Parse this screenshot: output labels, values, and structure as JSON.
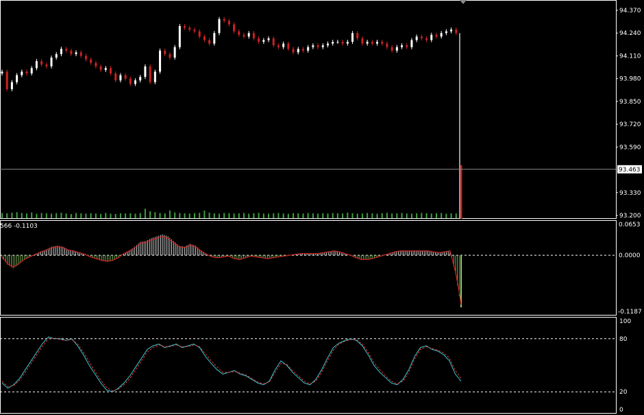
{
  "chart_data": [
    {
      "type": "candlestick",
      "panel": "price",
      "title": "",
      "ylim": [
        93.2,
        94.37
      ],
      "y_ticks": [
        "94.370",
        "94.240",
        "94.110",
        "93.980",
        "93.850",
        "93.720",
        "93.590",
        "93.330",
        "93.200"
      ],
      "current_price_label": "93.463",
      "current_price": 93.463,
      "up_color": "#ffffff",
      "down_color": "#cc2222",
      "volume_color": "#3e9e3e",
      "close_series": [
        94.02,
        93.92,
        93.96,
        94.0,
        94.02,
        94.01,
        94.04,
        94.08,
        94.06,
        94.05,
        94.1,
        94.12,
        94.15,
        94.14,
        94.12,
        94.13,
        94.11,
        94.09,
        94.07,
        94.05,
        94.03,
        94.04,
        94.01,
        93.97,
        94.0,
        93.98,
        93.95,
        93.97,
        93.99,
        94.05,
        93.96,
        94.02,
        94.14,
        94.12,
        94.1,
        94.16,
        94.28,
        94.27,
        94.26,
        94.25,
        94.22,
        94.2,
        94.18,
        94.24,
        94.32,
        94.31,
        94.29,
        94.25,
        94.23,
        94.22,
        94.24,
        94.21,
        94.19,
        94.2,
        94.21,
        94.17,
        94.16,
        94.18,
        94.15,
        94.13,
        94.15,
        94.14,
        94.16,
        94.17,
        94.16,
        94.17,
        94.18,
        94.19,
        94.19,
        94.18,
        94.19,
        94.24,
        94.21,
        94.18,
        94.19,
        94.18,
        94.19,
        94.18,
        94.16,
        94.14,
        94.16,
        94.17,
        94.16,
        94.2,
        94.22,
        94.21,
        94.2,
        94.23,
        94.22,
        94.24,
        94.25,
        94.26,
        94.24,
        93.463
      ],
      "volume_series": [
        0.3,
        0.28,
        0.32,
        0.35,
        0.3,
        0.27,
        0.33,
        0.25,
        0.3,
        0.28,
        0.26,
        0.29,
        0.31,
        0.27,
        0.24,
        0.3,
        0.28,
        0.26,
        0.29,
        0.27,
        0.25,
        0.3,
        0.26,
        0.24,
        0.28,
        0.27,
        0.29,
        0.26,
        0.3,
        0.55,
        0.4,
        0.35,
        0.3,
        0.28,
        0.45,
        0.33,
        0.3,
        0.28,
        0.27,
        0.29,
        0.31,
        0.44,
        0.32,
        0.28,
        0.26,
        0.3,
        0.29,
        0.27,
        0.28,
        0.3,
        0.26,
        0.29,
        0.31,
        0.27,
        0.26,
        0.28,
        0.3,
        0.27,
        0.25,
        0.29,
        0.28,
        0.27,
        0.3,
        0.28,
        0.26,
        0.29,
        0.27,
        0.3,
        0.28,
        0.27,
        0.32,
        0.29,
        0.26,
        0.27,
        0.3,
        0.28,
        0.26,
        0.29,
        0.31,
        0.27,
        0.28,
        0.3,
        0.27,
        0.26,
        0.28,
        0.3,
        0.29,
        0.27,
        0.28,
        0.3,
        0.26,
        0.28,
        0.27,
        1.0
      ]
    },
    {
      "type": "histogram",
      "panel": "macd",
      "header_label": "566 -0.1103",
      "ylim": [
        -0.1187,
        0.0653
      ],
      "y_ticks": [
        "0.0653",
        "-0.1187"
      ],
      "zero_label": "0.0000",
      "pos_color": "#ffffff",
      "neg_color": "#8fd16a",
      "signal_color": "#cc2222",
      "values": [
        -0.005,
        -0.02,
        -0.028,
        -0.02,
        -0.01,
        -0.004,
        0.002,
        0.008,
        0.012,
        0.018,
        0.02,
        0.018,
        0.012,
        0.01,
        0.006,
        0.002,
        -0.004,
        -0.008,
        -0.012,
        -0.014,
        -0.012,
        -0.006,
        0.004,
        0.01,
        0.018,
        0.028,
        0.03,
        0.036,
        0.04,
        0.044,
        0.04,
        0.03,
        0.02,
        0.018,
        0.024,
        0.02,
        0.01,
        0.002,
        -0.004,
        -0.006,
        -0.004,
        -0.002,
        -0.008,
        -0.01,
        -0.006,
        -0.002,
        -0.004,
        -0.006,
        -0.008,
        -0.006,
        -0.004,
        -0.002,
        0.0,
        0.002,
        0.004,
        0.004,
        0.004,
        0.004,
        0.006,
        0.008,
        0.01,
        0.008,
        0.004,
        0.0,
        -0.006,
        -0.01,
        -0.01,
        -0.008,
        -0.004,
        0.0,
        0.004,
        0.008,
        0.01,
        0.01,
        0.01,
        0.01,
        0.01,
        0.01,
        0.008,
        0.006,
        0.008,
        0.01,
        -0.04,
        -0.11
      ]
    },
    {
      "type": "line",
      "panel": "stochastic",
      "ylim": [
        0,
        100
      ],
      "y_ticks": [
        "100",
        "80",
        "20",
        "0"
      ],
      "levels": [
        80,
        20
      ],
      "series": [
        {
          "color": "#40c8d8",
          "values": [
            30,
            24,
            28,
            35,
            45,
            55,
            65,
            75,
            82,
            80,
            80,
            78,
            80,
            72,
            62,
            50,
            40,
            30,
            22,
            20,
            24,
            30,
            38,
            48,
            58,
            68,
            72,
            74,
            70,
            72,
            74,
            70,
            72,
            74,
            70,
            60,
            52,
            45,
            40,
            42,
            44,
            40,
            38,
            34,
            30,
            28,
            32,
            45,
            55,
            50,
            42,
            36,
            30,
            28,
            34,
            45,
            58,
            70,
            75,
            78,
            80,
            78,
            72,
            62,
            50,
            42,
            36,
            30,
            28,
            34,
            45,
            60,
            70,
            72,
            68,
            66,
            62,
            55,
            40,
            32
          ]
        },
        {
          "color": "#e23a3a",
          "values": [
            32,
            26,
            27,
            33,
            42,
            52,
            62,
            72,
            80,
            81,
            79,
            78,
            79,
            74,
            65,
            54,
            43,
            33,
            25,
            21,
            23,
            28,
            35,
            45,
            55,
            65,
            70,
            73,
            71,
            71,
            73,
            71,
            71,
            73,
            71,
            63,
            55,
            48,
            42,
            42,
            43,
            41,
            39,
            35,
            31,
            29,
            31,
            42,
            52,
            51,
            44,
            38,
            32,
            29,
            32,
            42,
            55,
            67,
            74,
            77,
            79,
            79,
            74,
            65,
            53,
            45,
            38,
            32,
            29,
            32,
            42,
            57,
            68,
            71,
            69,
            67,
            64,
            58,
            44,
            35
          ]
        }
      ]
    }
  ]
}
